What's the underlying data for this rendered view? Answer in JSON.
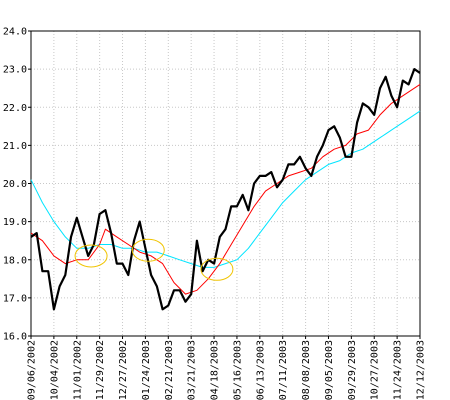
{
  "chart_data": {
    "type": "line",
    "title": "",
    "xlabel": "",
    "ylabel": "",
    "ylim": [
      16.0,
      24.0
    ],
    "y_ticks": [
      "16.0",
      "17.0",
      "18.0",
      "19.0",
      "20.0",
      "21.0",
      "22.0",
      "23.0",
      "24.0"
    ],
    "x_ticks": [
      "09/06/2002",
      "10/04/2002",
      "11/01/2002",
      "11/29/2002",
      "12/27/2002",
      "01/24/2003",
      "02/21/2003",
      "03/21/2003",
      "04/18/2003",
      "05/16/2003",
      "06/13/2003",
      "07/11/2003",
      "08/08/2003",
      "09/05/2003",
      "09/29/2003",
      "10/27/2003",
      "11/24/2003",
      "12/12/2003"
    ],
    "grid": true,
    "colors": {
      "price": "#000000",
      "ma_short": "#ff0000",
      "ma_long": "#00e5ff",
      "highlight": "#f0c400",
      "grid": "#c8c8c8"
    },
    "series": [
      {
        "key": "price",
        "values": [
          [
            0,
            18.6
          ],
          [
            1,
            18.7
          ],
          [
            2,
            17.7
          ],
          [
            3,
            17.7
          ],
          [
            4,
            16.7
          ],
          [
            5,
            17.3
          ],
          [
            6,
            17.6
          ],
          [
            7,
            18.6
          ],
          [
            8,
            19.1
          ],
          [
            9,
            18.6
          ],
          [
            10,
            18.1
          ],
          [
            11,
            18.4
          ],
          [
            12,
            19.2
          ],
          [
            13,
            19.3
          ],
          [
            14,
            18.7
          ],
          [
            15,
            17.9
          ],
          [
            16,
            17.9
          ],
          [
            17,
            17.6
          ],
          [
            18,
            18.5
          ],
          [
            19,
            19.0
          ],
          [
            20,
            18.3
          ],
          [
            21,
            17.6
          ],
          [
            22,
            17.3
          ],
          [
            23,
            16.7
          ],
          [
            24,
            16.8
          ],
          [
            25,
            17.2
          ],
          [
            26,
            17.2
          ],
          [
            27,
            16.9
          ],
          [
            28,
            17.1
          ],
          [
            29,
            18.5
          ],
          [
            30,
            17.7
          ],
          [
            31,
            18.0
          ],
          [
            32,
            17.9
          ],
          [
            33,
            18.6
          ],
          [
            34,
            18.8
          ],
          [
            35,
            19.4
          ],
          [
            36,
            19.4
          ],
          [
            37,
            19.7
          ],
          [
            38,
            19.3
          ],
          [
            39,
            20.0
          ],
          [
            40,
            20.2
          ],
          [
            41,
            20.2
          ],
          [
            42,
            20.3
          ],
          [
            43,
            19.9
          ],
          [
            44,
            20.1
          ],
          [
            45,
            20.5
          ],
          [
            46,
            20.5
          ],
          [
            47,
            20.7
          ],
          [
            48,
            20.4
          ],
          [
            49,
            20.2
          ],
          [
            50,
            20.7
          ],
          [
            51,
            21.0
          ],
          [
            52,
            21.4
          ],
          [
            53,
            21.5
          ],
          [
            54,
            21.2
          ],
          [
            55,
            20.7
          ],
          [
            56,
            20.7
          ],
          [
            57,
            21.6
          ],
          [
            58,
            22.1
          ],
          [
            59,
            22.0
          ],
          [
            60,
            21.8
          ],
          [
            61,
            22.5
          ],
          [
            62,
            22.8
          ],
          [
            63,
            22.3
          ],
          [
            64,
            22.0
          ],
          [
            65,
            22.7
          ],
          [
            66,
            22.6
          ],
          [
            67,
            23.0
          ],
          [
            68,
            22.9
          ]
        ]
      },
      {
        "key": "ma_short",
        "values": [
          [
            0,
            18.7
          ],
          [
            2,
            18.5
          ],
          [
            4,
            18.1
          ],
          [
            6,
            17.9
          ],
          [
            8,
            18.0
          ],
          [
            10,
            18.0
          ],
          [
            12,
            18.4
          ],
          [
            13,
            18.8
          ],
          [
            15,
            18.6
          ],
          [
            17,
            18.4
          ],
          [
            19,
            18.2
          ],
          [
            21,
            18.1
          ],
          [
            23,
            17.9
          ],
          [
            25,
            17.4
          ],
          [
            27,
            17.1
          ],
          [
            29,
            17.2
          ],
          [
            31,
            17.5
          ],
          [
            33,
            17.9
          ],
          [
            35,
            18.4
          ],
          [
            37,
            18.9
          ],
          [
            39,
            19.4
          ],
          [
            41,
            19.8
          ],
          [
            43,
            20.0
          ],
          [
            45,
            20.2
          ],
          [
            47,
            20.3
          ],
          [
            49,
            20.4
          ],
          [
            51,
            20.7
          ],
          [
            53,
            20.9
          ],
          [
            55,
            21.0
          ],
          [
            57,
            21.3
          ],
          [
            59,
            21.4
          ],
          [
            61,
            21.8
          ],
          [
            63,
            22.1
          ],
          [
            65,
            22.3
          ],
          [
            67,
            22.5
          ],
          [
            68,
            22.6
          ]
        ]
      },
      {
        "key": "ma_long",
        "values": [
          [
            0,
            20.1
          ],
          [
            2,
            19.5
          ],
          [
            4,
            19.0
          ],
          [
            6,
            18.6
          ],
          [
            8,
            18.3
          ],
          [
            10,
            18.3
          ],
          [
            12,
            18.4
          ],
          [
            14,
            18.4
          ],
          [
            16,
            18.3
          ],
          [
            18,
            18.3
          ],
          [
            20,
            18.2
          ],
          [
            22,
            18.2
          ],
          [
            24,
            18.1
          ],
          [
            26,
            18.0
          ],
          [
            28,
            17.9
          ],
          [
            30,
            17.8
          ],
          [
            32,
            17.8
          ],
          [
            34,
            17.9
          ],
          [
            36,
            18.0
          ],
          [
            38,
            18.3
          ],
          [
            40,
            18.7
          ],
          [
            42,
            19.1
          ],
          [
            44,
            19.5
          ],
          [
            46,
            19.8
          ],
          [
            48,
            20.1
          ],
          [
            50,
            20.3
          ],
          [
            52,
            20.5
          ],
          [
            54,
            20.6
          ],
          [
            56,
            20.8
          ],
          [
            58,
            20.9
          ],
          [
            60,
            21.1
          ],
          [
            62,
            21.3
          ],
          [
            64,
            21.5
          ],
          [
            66,
            21.7
          ],
          [
            68,
            21.9
          ]
        ]
      }
    ],
    "annotations": [
      {
        "type": "ellipse",
        "cx": 10.5,
        "cy": 18.1
      },
      {
        "type": "ellipse",
        "cx": 20.5,
        "cy": 18.25
      },
      {
        "type": "ellipse",
        "cx": 32.5,
        "cy": 17.75
      }
    ]
  }
}
